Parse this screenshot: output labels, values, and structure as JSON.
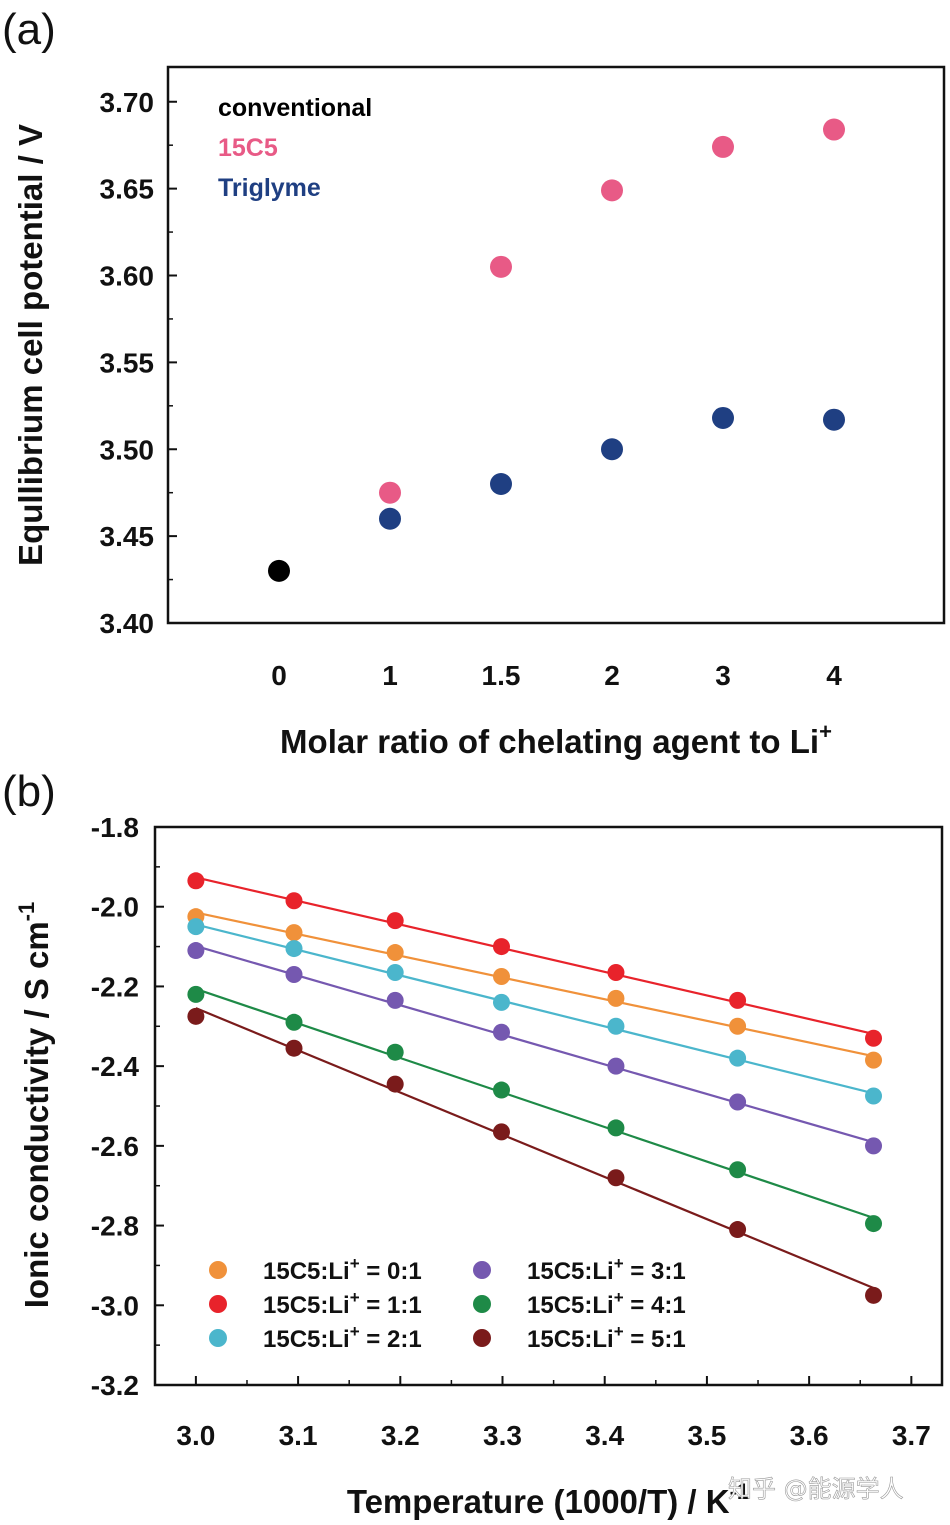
{
  "watermark": "知乎 @能源学人",
  "chart_data": [
    {
      "type": "scatter",
      "panel_label": "(a)",
      "ylabel": "Equllibrium cell potential / V",
      "xlabel": "Molar ratio of chelating agent to Li+",
      "xlabel_main": "Molar ratio of chelating agent to Li",
      "xlabel_sup": "+",
      "categories": [
        "0",
        "1",
        "1.5",
        "2",
        "3",
        "4"
      ],
      "ylim": [
        3.4,
        3.72
      ],
      "yticks": [
        3.4,
        3.45,
        3.5,
        3.55,
        3.6,
        3.65,
        3.7
      ],
      "ytick_labels": [
        "3.40",
        "3.45",
        "3.50",
        "3.55",
        "3.60",
        "3.65",
        "3.70"
      ],
      "legend_position": "top-left",
      "series": [
        {
          "name": "conventional",
          "color": "#000000",
          "points": [
            [
              0,
              3.43
            ]
          ]
        },
        {
          "name": "15C5",
          "color": "#e85a86",
          "points": [
            [
              1,
              3.475
            ],
            [
              2,
              3.605
            ],
            [
              3,
              3.649
            ],
            [
              4,
              3.674
            ],
            [
              5,
              3.684
            ]
          ]
        },
        {
          "name": "Triglyme",
          "color": "#1f3f82",
          "points": [
            [
              1,
              3.46
            ],
            [
              2,
              3.48
            ],
            [
              3,
              3.5
            ],
            [
              4,
              3.518
            ],
            [
              5,
              3.517
            ]
          ]
        }
      ]
    },
    {
      "type": "scatter",
      "panel_label": "(b)",
      "ylabel": "Ionic conductivity / S cm-1",
      "ylabel_main": "Ionic conductivity / S cm",
      "ylabel_sup": "-1",
      "xlabel": "Temperature (1000/T) / K-1",
      "xlabel_main": "Temperature (1000/T) / K",
      "xlabel_sup": "-1",
      "xlim": [
        2.96,
        3.73
      ],
      "ylim": [
        -3.2,
        -1.8
      ],
      "xticks": [
        3.0,
        3.1,
        3.2,
        3.3,
        3.4,
        3.5,
        3.6,
        3.7
      ],
      "xtick_labels": [
        "3.0",
        "3.1",
        "3.2",
        "3.3",
        "3.4",
        "3.5",
        "3.6",
        "3.7"
      ],
      "yticks": [
        -3.2,
        -3.0,
        -2.8,
        -2.6,
        -2.4,
        -2.2,
        -2.0,
        -1.8
      ],
      "ytick_labels": [
        "-3.2",
        "-3.0",
        "-2.8",
        "-2.6",
        "-2.4",
        "-2.2",
        "-2.0",
        "-1.8"
      ],
      "legend_position": "bottom-left",
      "x": [
        3.0,
        3.096,
        3.195,
        3.299,
        3.411,
        3.53,
        3.663
      ],
      "series": [
        {
          "name": "15C5:Li+ = 0:1",
          "label_main": "15C5:Li",
          "label_sup": "+",
          "label_tail": " = 0:1",
          "color": "#f0913a",
          "values": [
            -2.025,
            -2.065,
            -2.115,
            -2.175,
            -2.23,
            -2.3,
            -2.385
          ]
        },
        {
          "name": "15C5:Li+ = 1:1",
          "label_main": "15C5:Li",
          "label_sup": "+",
          "label_tail": " = 1:1",
          "color": "#e8232b",
          "values": [
            -1.935,
            -1.985,
            -2.035,
            -2.1,
            -2.165,
            -2.235,
            -2.33
          ]
        },
        {
          "name": "15C5:Li+ = 2:1",
          "label_main": "15C5:Li",
          "label_sup": "+",
          "label_tail": " = 2:1",
          "color": "#4bb6cc",
          "values": [
            -2.05,
            -2.105,
            -2.165,
            -2.24,
            -2.3,
            -2.38,
            -2.475
          ]
        },
        {
          "name": "15C5:Li+ = 3:1",
          "label_main": "15C5:Li",
          "label_sup": "+",
          "label_tail": " = 3:1",
          "color": "#7558b0",
          "values": [
            -2.11,
            -2.17,
            -2.235,
            -2.315,
            -2.4,
            -2.49,
            -2.6
          ]
        },
        {
          "name": "15C5:Li+ = 4:1",
          "label_main": "15C5:Li",
          "label_sup": "+",
          "label_tail": " = 4:1",
          "color": "#1e8a47",
          "values": [
            -2.22,
            -2.29,
            -2.365,
            -2.46,
            -2.555,
            -2.66,
            -2.795
          ]
        },
        {
          "name": "15C5:Li+ = 5:1",
          "label_main": "15C5:Li",
          "label_sup": "+",
          "label_tail": " = 5:1",
          "color": "#7a1b1b",
          "values": [
            -2.275,
            -2.355,
            -2.445,
            -2.565,
            -2.68,
            -2.81,
            -2.975
          ]
        }
      ]
    }
  ]
}
